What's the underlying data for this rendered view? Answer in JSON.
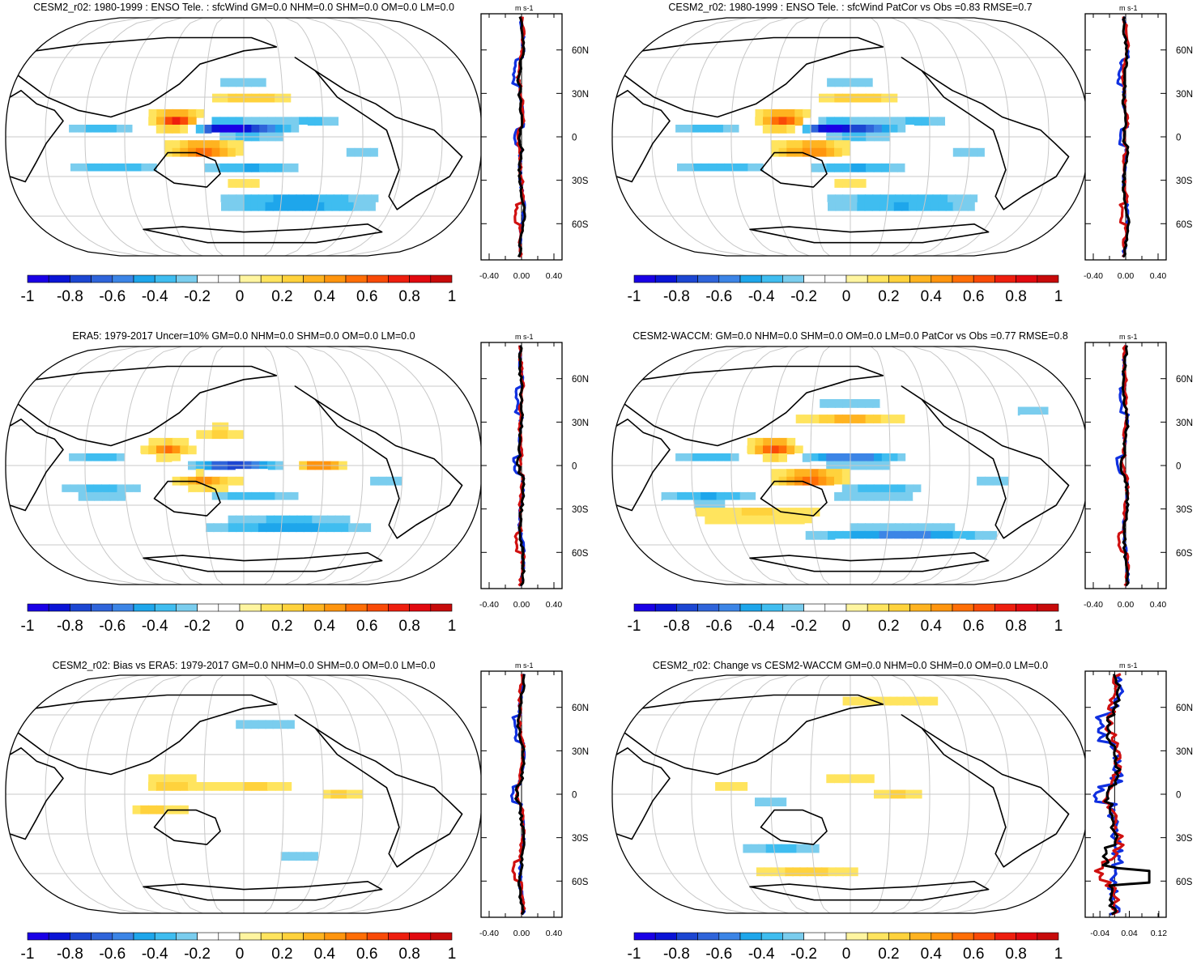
{
  "figure": {
    "units": "m s-1",
    "colorbar": {
      "labels": [
        "-1",
        "-0.8",
        "-0.6",
        "-0.4",
        "-0.2",
        "0",
        "0.2",
        "0.4",
        "0.6",
        "0.8",
        "1"
      ],
      "colors": [
        "#1a00e6",
        "#0a14d6",
        "#1c46d2",
        "#2f64da",
        "#3c85e6",
        "#1ea6eb",
        "#3fbdf0",
        "#7acdee",
        "#ffffff",
        "#ffffff",
        "#fff5a0",
        "#ffe45e",
        "#ffd23c",
        "#ffb320",
        "#ff950e",
        "#ff6e06",
        "#f94a07",
        "#ee1e0e",
        "#e1090f",
        "#c70a0a"
      ]
    },
    "line_colors": {
      "model": "#d01010",
      "obs": "#1030e0",
      "ensemble": "#000000"
    }
  },
  "chart_data": [
    {
      "type": "filled_map",
      "title": "CESM2_r02: 1980-1999 : ENSO Tele. : sfcWind GM=0.0 NHM=0.0 SHM=0.0 OM=0.0 LM=0.0",
      "zonal_mean": {
        "unit_label": "m s-1",
        "x_ticks": [
          "-0.40",
          "0.00",
          "0.40"
        ],
        "xlim": [
          -0.5,
          0.5
        ],
        "y_ticks": [
          "60N",
          "30N",
          "0",
          "30S",
          "60S"
        ],
        "lat_values": [
          60,
          30,
          0,
          -30,
          -60
        ],
        "lat_range": [
          -85,
          85
        ]
      }
    },
    {
      "type": "filled_map",
      "title": "CESM2_r02: 1980-1999 : ENSO Tele. : sfcWind PatCor vs Obs =0.83 RMSE=0.7",
      "zonal_mean": {
        "unit_label": "m s-1",
        "x_ticks": [
          "-0.40",
          "0.00",
          "0.40"
        ],
        "xlim": [
          -0.5,
          0.5
        ],
        "y_ticks": [
          "60N",
          "30N",
          "0",
          "30S",
          "60S"
        ],
        "lat_values": [
          60,
          30,
          0,
          -30,
          -60
        ],
        "lat_range": [
          -85,
          85
        ]
      }
    },
    {
      "type": "filled_map",
      "title": "ERA5: 1979-2017 Uncer=10% GM=0.0 NHM=0.0 SHM=0.0 OM=0.0 LM=0.0",
      "zonal_mean": {
        "unit_label": "m s-1",
        "x_ticks": [
          "-0.40",
          "0.00",
          "0.40"
        ],
        "xlim": [
          -0.5,
          0.5
        ],
        "y_ticks": [
          "60N",
          "30N",
          "0",
          "30S",
          "60S"
        ],
        "lat_values": [
          60,
          30,
          0,
          -30,
          -60
        ],
        "lat_range": [
          -85,
          85
        ]
      }
    },
    {
      "type": "filled_map",
      "title": "CESM2-WACCM: GM=0.0 NHM=0.0 SHM=0.0 OM=0.0 LM=0.0 PatCor vs Obs =0.77 RMSE=0.8",
      "zonal_mean": {
        "unit_label": "m s-1",
        "x_ticks": [
          "-0.40",
          "0.00",
          "0.40"
        ],
        "xlim": [
          -0.5,
          0.5
        ],
        "y_ticks": [
          "60N",
          "30N",
          "0",
          "30S",
          "60S"
        ],
        "lat_values": [
          60,
          30,
          0,
          -30,
          -60
        ],
        "lat_range": [
          -85,
          85
        ]
      }
    },
    {
      "type": "filled_map",
      "title": "CESM2_r02: Bias vs ERA5: 1979-2017 GM=0.0 NHM=0.0 SHM=0.0 OM=0.0 LM=0.0",
      "zonal_mean": {
        "unit_label": "m s-1",
        "x_ticks": [
          "-0.40",
          "0.00",
          "0.40"
        ],
        "xlim": [
          -0.5,
          0.5
        ],
        "y_ticks": [
          "60N",
          "30N",
          "0",
          "30S",
          "60S"
        ],
        "lat_values": [
          60,
          30,
          0,
          -30,
          -60
        ],
        "lat_range": [
          -85,
          85
        ]
      }
    },
    {
      "type": "filled_map",
      "title": "CESM2_r02: Change vs CESM2-WACCM GM=0.0 NHM=0.0 SHM=0.0 OM=0.0 LM=0.0",
      "zonal_mean": {
        "unit_label": "m s-1",
        "x_ticks": [
          "-0.04",
          "0.04",
          "0.12"
        ],
        "xlim": [
          -0.08,
          0.14
        ],
        "y_ticks": [
          "60N",
          "30N",
          "0",
          "30S",
          "60S"
        ],
        "lat_values": [
          60,
          30,
          0,
          -30,
          -60
        ],
        "lat_range": [
          -85,
          85
        ]
      }
    }
  ]
}
